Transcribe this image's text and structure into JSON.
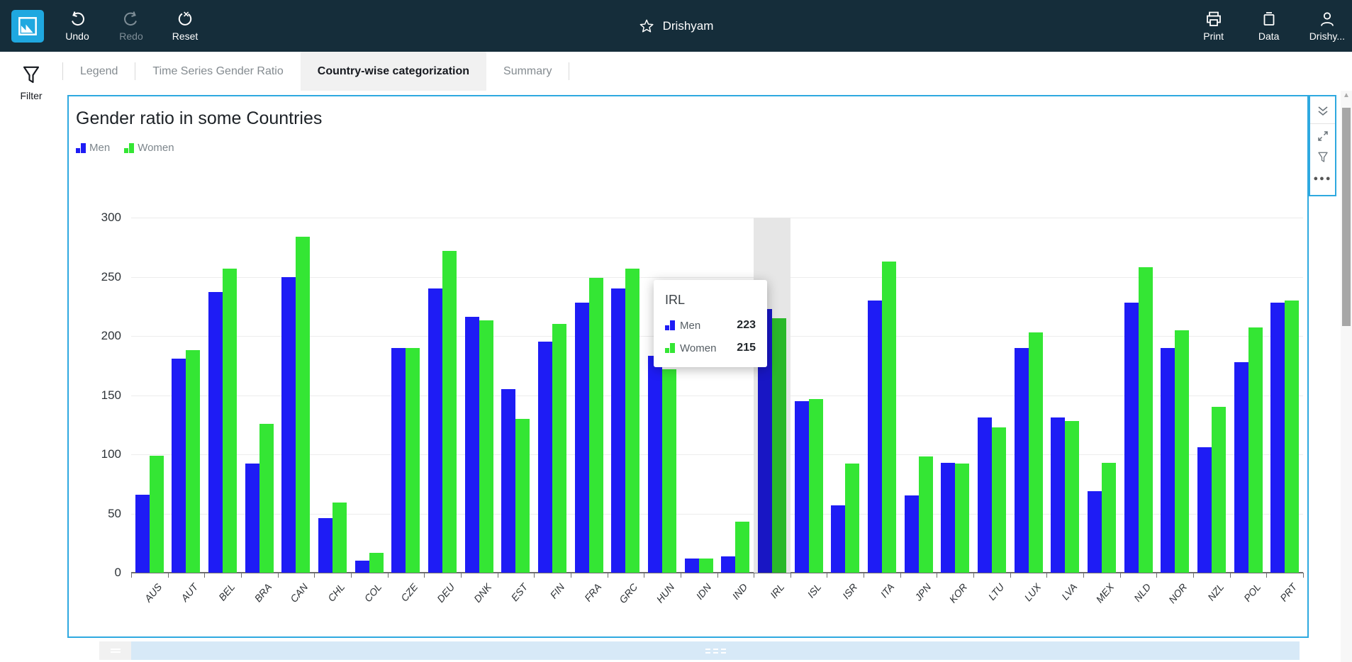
{
  "topbar": {
    "undo_label": "Undo",
    "redo_label": "Redo",
    "reset_label": "Reset",
    "doc_title": "Drishyam",
    "print_label": "Print",
    "data_label": "Data",
    "user_label": "Drishy...",
    "bg_color": "#152d3a",
    "logo_color": "#1fa8e0",
    "accent_color": "#2ea9e0"
  },
  "sidebar": {
    "filter_label": "Filter"
  },
  "tabs": [
    {
      "label": "Legend",
      "active": false
    },
    {
      "label": "Time Series Gender Ratio",
      "active": false
    },
    {
      "label": "Country-wise categorization",
      "active": true
    },
    {
      "label": "Summary",
      "active": false
    }
  ],
  "visual": {
    "title": "Gender ratio in some Countries"
  },
  "legend": [
    {
      "name": "Men",
      "color": "#1e1cf5"
    },
    {
      "name": "Women",
      "color": "#34e634"
    }
  ],
  "tooltip": {
    "title": "IRL",
    "rows": [
      {
        "label": "Men",
        "value": "223",
        "color": "#1e1cf5"
      },
      {
        "label": "Women",
        "value": "215",
        "color": "#34e634"
      }
    ]
  },
  "chart_data": {
    "type": "bar",
    "title": "Gender ratio in some Countries",
    "xlabel": "",
    "ylabel": "",
    "ylim": [
      0,
      300
    ],
    "yticks": [
      0,
      50,
      100,
      150,
      200,
      250,
      300
    ],
    "grid": true,
    "legend_position": "top-left",
    "highlighted_category": "IRL",
    "categories": [
      "AUS",
      "AUT",
      "BEL",
      "BRA",
      "CAN",
      "CHL",
      "COL",
      "CZE",
      "DEU",
      "DNK",
      "EST",
      "FIN",
      "FRA",
      "GRC",
      "HUN",
      "IDN",
      "IND",
      "IRL",
      "ISL",
      "ISR",
      "ITA",
      "JPN",
      "KOR",
      "LTU",
      "LUX",
      "LVA",
      "MEX",
      "NLD",
      "NOR",
      "NZL",
      "POL",
      "PRT"
    ],
    "series": [
      {
        "name": "Men",
        "color": "#1e1cf5",
        "values": [
          66,
          181,
          237,
          92,
          250,
          46,
          10,
          190,
          240,
          216,
          155,
          195,
          228,
          240,
          183,
          12,
          14,
          223,
          145,
          57,
          230,
          65,
          93,
          131,
          190,
          131,
          69,
          228,
          190,
          106,
          178,
          228
        ]
      },
      {
        "name": "Women",
        "color": "#34e634",
        "values": [
          99,
          188,
          257,
          126,
          284,
          59,
          17,
          190,
          272,
          213,
          130,
          210,
          249,
          257,
          172,
          12,
          43,
          215,
          147,
          92,
          263,
          98,
          92,
          123,
          203,
          128,
          93,
          258,
          205,
          140,
          207,
          230
        ]
      }
    ]
  }
}
